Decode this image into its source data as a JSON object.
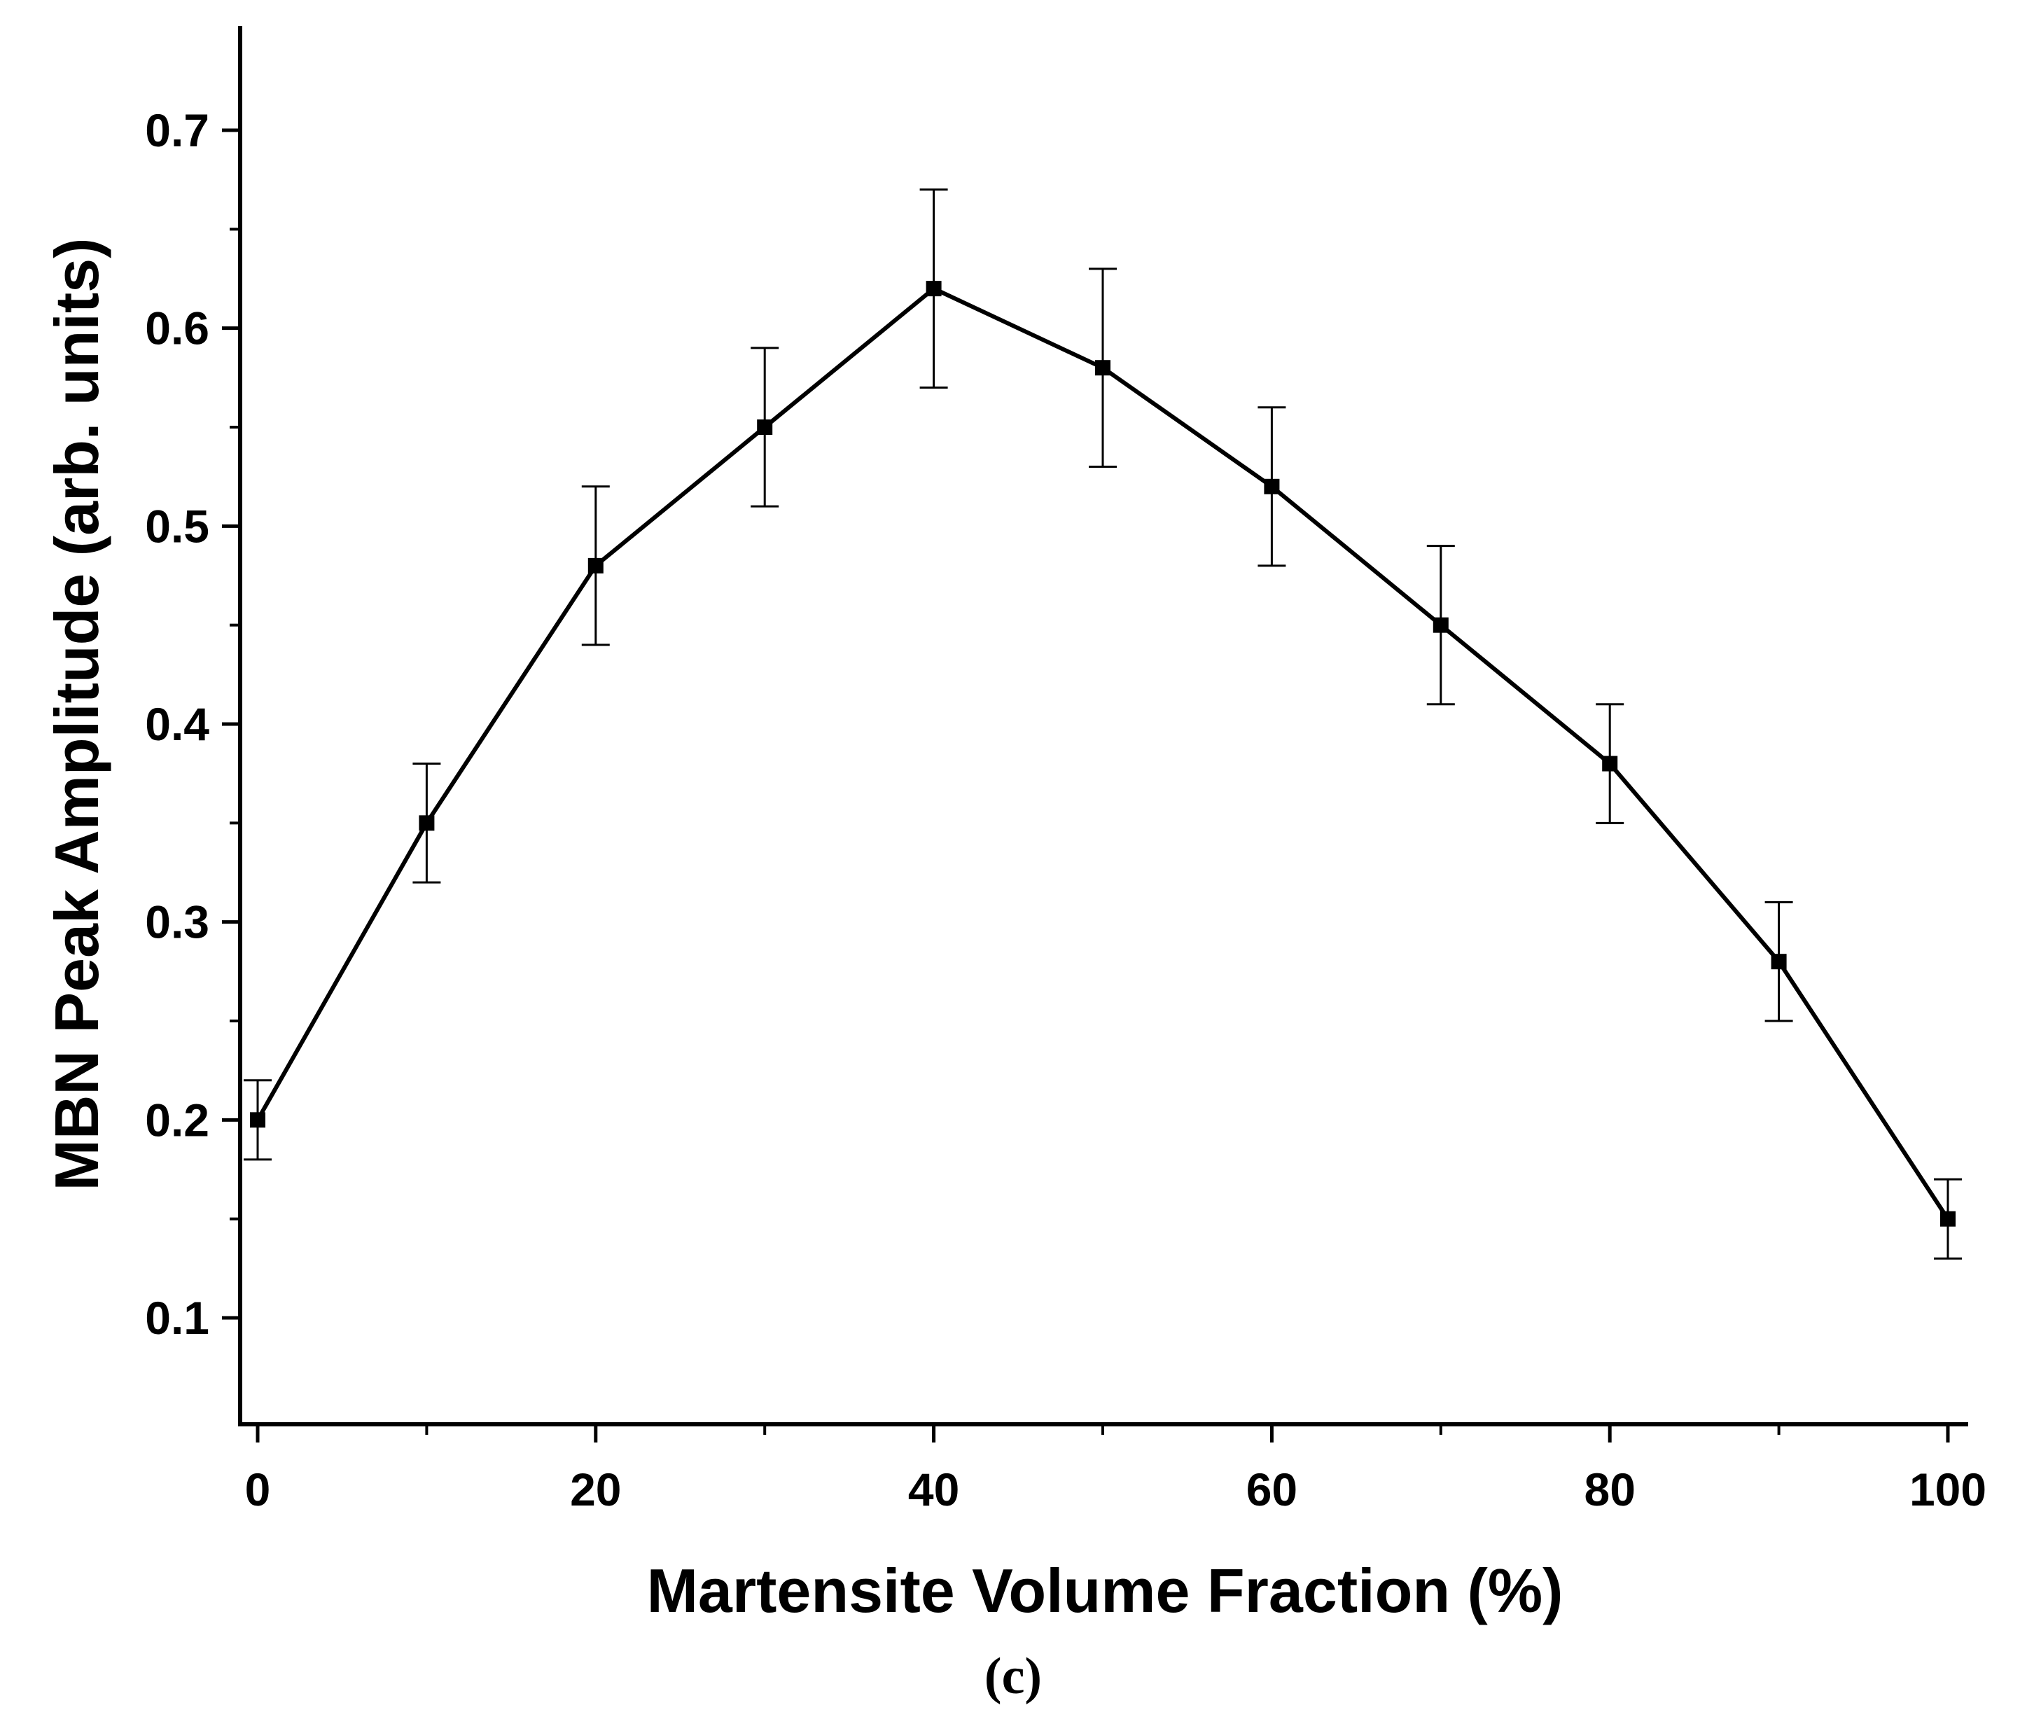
{
  "chart_data": {
    "type": "line",
    "title": "",
    "xlabel": "Martensite Volume Fraction (%)",
    "ylabel": "MBN Peak Amplitude (arb. units)",
    "panel_label": "(c)",
    "xlim": [
      -1,
      101
    ],
    "ylim": [
      0.05,
      0.75
    ],
    "x_ticks": [
      0,
      20,
      40,
      60,
      80,
      100
    ],
    "x_minor_ticks": [
      10,
      30,
      50,
      70,
      90
    ],
    "y_ticks": [
      0.1,
      0.2,
      0.3,
      0.4,
      0.5,
      0.6,
      0.7
    ],
    "y_minor_ticks": [
      0.15,
      0.25,
      0.35,
      0.45,
      0.55,
      0.65
    ],
    "x_tick_labels": [
      "0",
      "20",
      "40",
      "60",
      "80",
      "100"
    ],
    "y_tick_labels": [
      "0.1",
      "0.2",
      "0.3",
      "0.4",
      "0.5",
      "0.6",
      "0.7"
    ],
    "grid": false,
    "marker": "square",
    "line_color": "#000000",
    "series": [
      {
        "x": [
          0,
          10,
          20,
          30,
          40,
          50,
          60,
          70,
          80,
          90,
          100
        ],
        "y": [
          0.2,
          0.35,
          0.48,
          0.55,
          0.62,
          0.58,
          0.52,
          0.45,
          0.38,
          0.28,
          0.15
        ],
        "err": [
          0.02,
          0.03,
          0.04,
          0.04,
          0.05,
          0.05,
          0.04,
          0.04,
          0.03,
          0.03,
          0.02
        ]
      }
    ]
  }
}
